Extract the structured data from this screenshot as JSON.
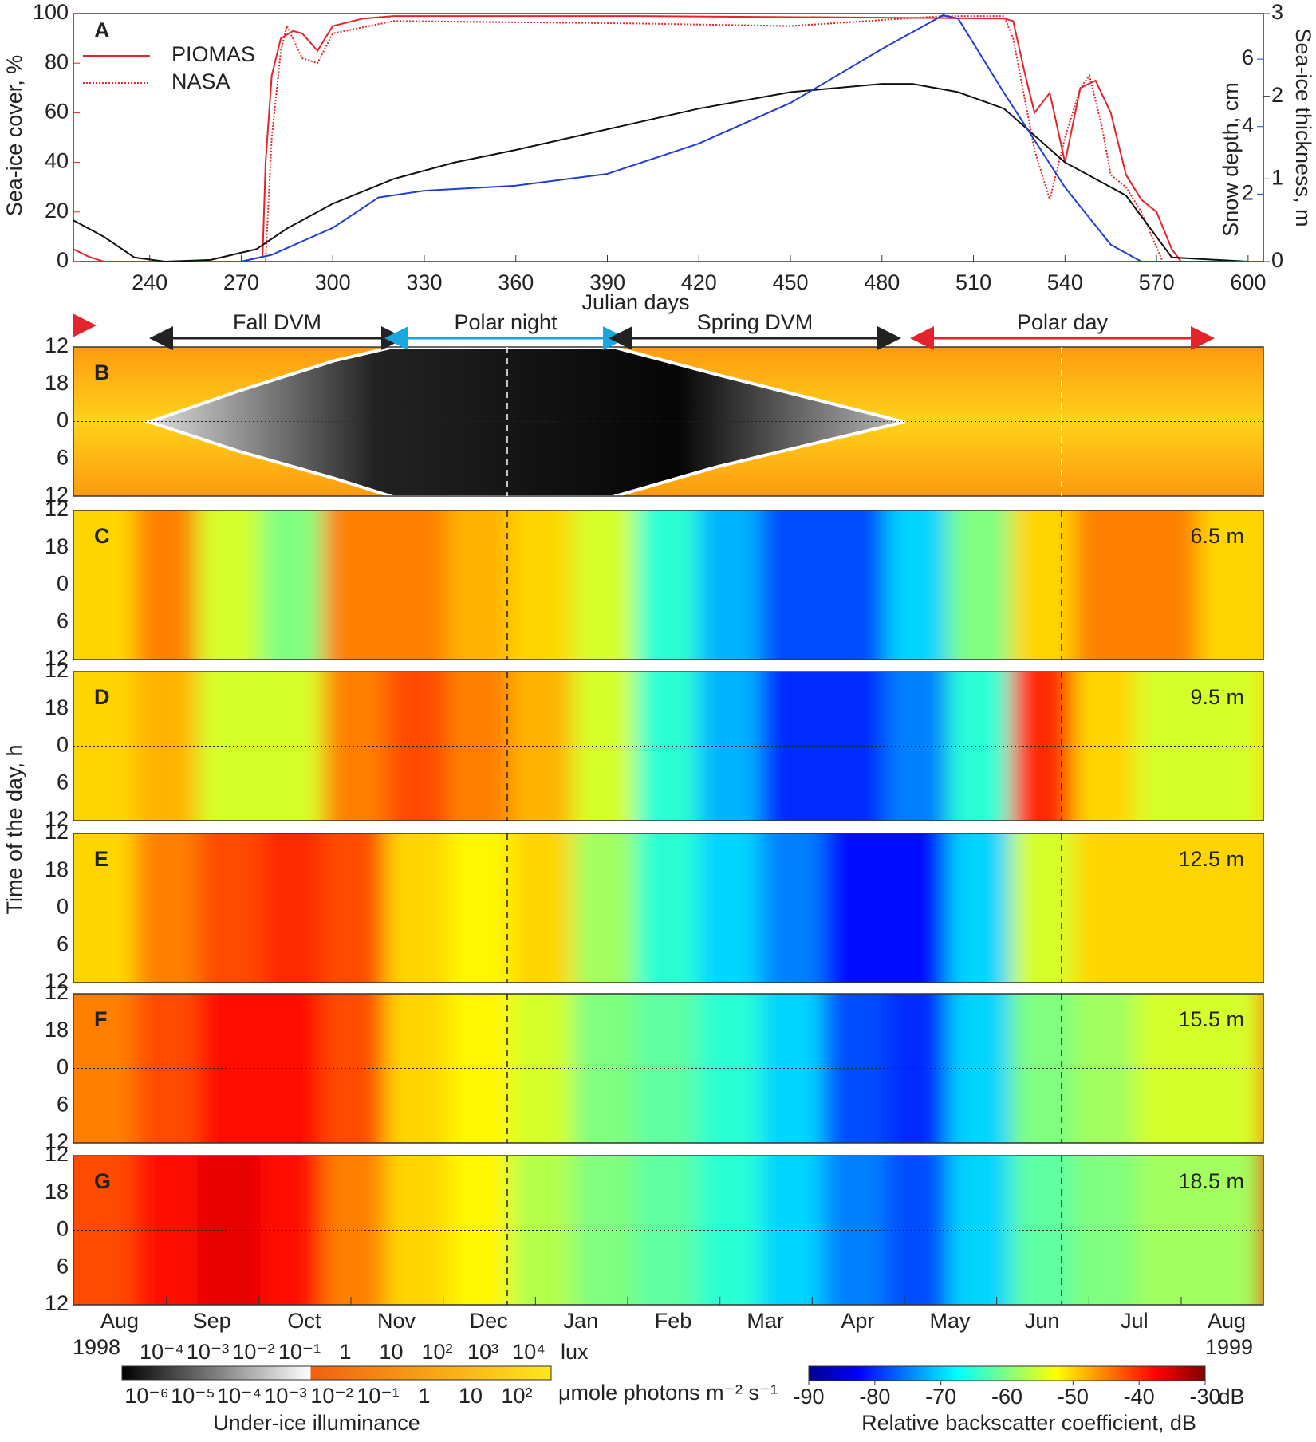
{
  "chart_data": [
    {
      "type": "line",
      "panel_label": "A",
      "xlabel": "Julian days",
      "ylabel": "Sea-ice cover, %",
      "y2label": "Sea-ice thickness, m",
      "y3label": "Snow depth, cm",
      "xlim": [
        215,
        605
      ],
      "xticks": [
        240,
        270,
        300,
        330,
        360,
        390,
        420,
        450,
        480,
        510,
        540,
        570,
        600
      ],
      "ylim": [
        0,
        100
      ],
      "yticks": [
        0,
        20,
        40,
        60,
        80,
        100
      ],
      "y2lim": [
        0,
        3
      ],
      "y2ticks": [
        0,
        1,
        2,
        3
      ],
      "y3lim": [
        0,
        7.35
      ],
      "y3ticks": [
        2,
        4,
        6
      ],
      "series": [
        {
          "name": "PIOMAS",
          "color": "#e3242b",
          "style": "solid",
          "axis": "y",
          "x": [
            215,
            220,
            225,
            270,
            277,
            278,
            280,
            283,
            287,
            290,
            295,
            300,
            310,
            320,
            400,
            520,
            523,
            527,
            530,
            535,
            540,
            545,
            550,
            555,
            560,
            565,
            570,
            575,
            578,
            605
          ],
          "values": [
            5,
            2,
            0,
            0,
            2,
            40,
            75,
            90,
            93,
            92,
            85,
            95,
            98,
            99,
            99,
            98,
            97,
            75,
            60,
            68,
            40,
            70,
            73,
            60,
            35,
            25,
            20,
            5,
            0,
            0
          ]
        },
        {
          "name": "NASA",
          "color": "#e3242b",
          "style": "dotted",
          "axis": "y",
          "x": [
            270,
            278,
            280,
            283,
            285,
            290,
            295,
            300,
            320,
            400,
            450,
            500,
            520,
            523,
            530,
            535,
            540,
            545,
            548,
            552,
            555,
            560,
            565,
            572,
            605
          ],
          "values": [
            0,
            0,
            50,
            85,
            95,
            82,
            80,
            92,
            97,
            96,
            95,
            99,
            99,
            90,
            45,
            25,
            50,
            70,
            75,
            55,
            35,
            30,
            20,
            0,
            0
          ]
        },
        {
          "color": "#111111",
          "style": "solid",
          "axis": "y2",
          "x": [
            215,
            225,
            235,
            245,
            260,
            275,
            285,
            300,
            320,
            340,
            360,
            390,
            420,
            450,
            480,
            490,
            505,
            520,
            540,
            560,
            575,
            600
          ],
          "values": [
            0.5,
            0.3,
            0.05,
            0,
            0.02,
            0.15,
            0.4,
            0.7,
            1.0,
            1.2,
            1.35,
            1.6,
            1.85,
            2.05,
            2.15,
            2.15,
            2.05,
            1.85,
            1.2,
            0.8,
            0.05,
            0
          ]
        },
        {
          "color": "#1f3fd1",
          "style": "solid",
          "axis": "y3",
          "x": [
            270,
            280,
            300,
            315,
            330,
            360,
            390,
            420,
            450,
            480,
            500,
            505,
            520,
            540,
            555,
            565,
            600
          ],
          "values": [
            0,
            0.2,
            1.0,
            1.9,
            2.1,
            2.25,
            2.6,
            3.5,
            4.7,
            6.3,
            7.3,
            7.2,
            5.0,
            2.2,
            0.5,
            0,
            0
          ]
        }
      ]
    },
    {
      "type": "heatmap",
      "xlim": [
        215,
        605
      ],
      "ylabel": "Time of the day, h",
      "hour_labels": [
        12,
        18,
        0,
        6,
        12
      ],
      "annotations": [
        "Fall DVM",
        "Polar night",
        "Spring DVM",
        "Polar day"
      ],
      "categories": [
        "Aug",
        "Sep",
        "Oct",
        "Nov",
        "Dec",
        "Jan",
        "Feb",
        "Mar",
        "Apr",
        "May",
        "Jun",
        "Jul",
        "Aug"
      ],
      "years": [
        "1998",
        "1999"
      ],
      "bins": [
        215,
        235.5,
        256,
        276.5,
        297,
        317.5,
        338,
        358.5,
        379,
        399.5,
        420,
        440.5,
        461,
        481.5,
        502,
        522.5,
        543,
        563.5,
        584,
        604.5
      ],
      "panels": [
        {
          "label": "B"
        },
        {
          "label": "C",
          "depth": "6.5 m",
          "values": [
            -50,
            -45,
            -55,
            -60,
            -45,
            -45,
            -48,
            -50,
            -55,
            -65,
            -72,
            -78,
            -78,
            -70,
            -60,
            -50,
            -45,
            -45,
            -50
          ]
        },
        {
          "label": "D",
          "depth": "9.5 m",
          "values": [
            -50,
            -48,
            -55,
            -55,
            -45,
            -42,
            -45,
            -48,
            -55,
            -65,
            -72,
            -80,
            -80,
            -75,
            -65,
            -40,
            -50,
            -55,
            -55
          ]
        },
        {
          "label": "E",
          "depth": "12.5 m",
          "values": [
            -50,
            -45,
            -42,
            -40,
            -42,
            -50,
            -52,
            -50,
            -58,
            -65,
            -70,
            -75,
            -82,
            -82,
            -70,
            -55,
            -50,
            -50,
            -50
          ]
        },
        {
          "label": "F",
          "depth": "15.5 m",
          "values": [
            -45,
            -42,
            -38,
            -38,
            -42,
            -50,
            -52,
            -55,
            -60,
            -62,
            -65,
            -70,
            -78,
            -80,
            -70,
            -60,
            -58,
            -55,
            -55
          ]
        },
        {
          "label": "G",
          "depth": "18.5 m",
          "values": [
            -42,
            -38,
            -36,
            -38,
            -45,
            -50,
            -52,
            -57,
            -60,
            -62,
            -65,
            -70,
            -75,
            -78,
            -70,
            -62,
            -60,
            -58,
            -58
          ]
        }
      ],
      "illuminance": {
        "title": "Under-ice illuminance",
        "lux_unit": "lux",
        "lux_labels": [
          "10⁻⁴",
          "10⁻³",
          "10⁻²",
          "10⁻¹",
          "1",
          "10",
          "10²",
          "10³",
          "10⁴"
        ],
        "photon_unit": "μmole photons m⁻² s⁻¹",
        "photon_labels": [
          "10⁻⁶",
          "10⁻⁵",
          "10⁻⁴",
          "10⁻³",
          "10⁻²",
          "10⁻¹",
          "1",
          "10",
          "10²"
        ]
      },
      "backscatter": {
        "title": "Relative backscatter coefficient, dB",
        "unit": "dB",
        "ticks": [
          -90,
          -80,
          -70,
          -60,
          -50,
          -40,
          -30
        ]
      }
    }
  ]
}
